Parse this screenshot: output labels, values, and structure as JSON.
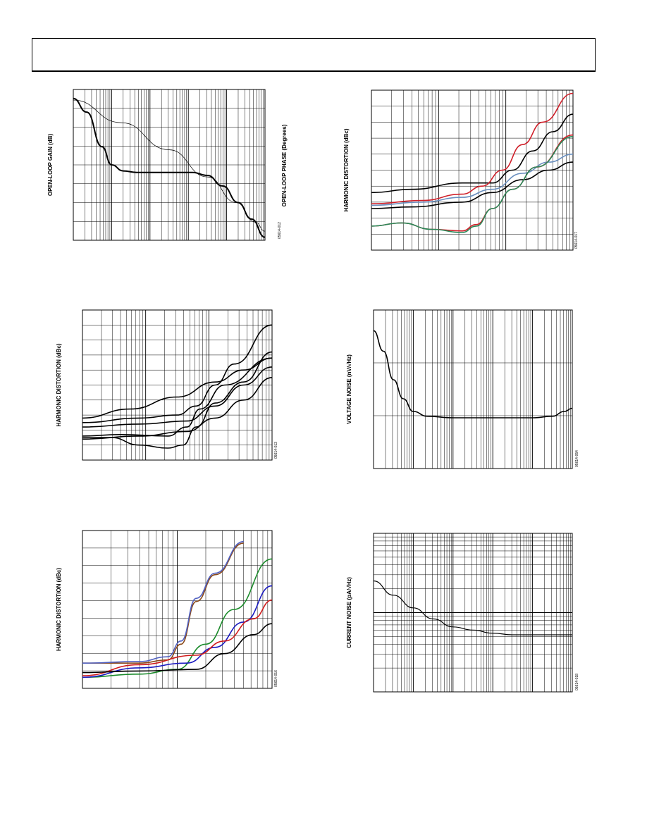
{
  "page": {
    "header_text": ""
  },
  "chart_data": [
    {
      "id": "c1",
      "type": "line",
      "ylabel": "OPEN-LOOP GAIN (dB)",
      "y2label": "OPEN-LOOP PHASE (Degrees)",
      "figure_code": "05614-012",
      "xscale": "log",
      "xdecades": 5,
      "hgrid": 8,
      "series": [
        {
          "color": "#000000",
          "width": 2.0,
          "points": [
            [
              0,
              0.94
            ],
            [
              0.07,
              0.85
            ],
            [
              0.15,
              0.62
            ],
            [
              0.2,
              0.5
            ],
            [
              0.26,
              0.46
            ],
            [
              0.33,
              0.45
            ],
            [
              0.5,
              0.45
            ],
            [
              0.62,
              0.45
            ],
            [
              0.7,
              0.43
            ],
            [
              0.78,
              0.36
            ],
            [
              0.86,
              0.25
            ],
            [
              0.93,
              0.14
            ],
            [
              1,
              0.02
            ]
          ]
        },
        {
          "color": "#000000",
          "width": 0.7,
          "points": [
            [
              0,
              0.93
            ],
            [
              0.25,
              0.78
            ],
            [
              0.5,
              0.6
            ],
            [
              0.7,
              0.42
            ],
            [
              0.85,
              0.25
            ],
            [
              0.95,
              0.12
            ],
            [
              1,
              0.06
            ]
          ]
        }
      ]
    },
    {
      "id": "c2",
      "type": "line",
      "ylabel": "HARMONIC DISTORTION (dBc)",
      "figure_code": "05614-017",
      "xscale": "log",
      "xdecades": 3,
      "hgrid": 10,
      "series": [
        {
          "color": "#000000",
          "width": 1.6,
          "points": [
            [
              0,
              0.36
            ],
            [
              0.2,
              0.38
            ],
            [
              0.45,
              0.42
            ],
            [
              0.6,
              0.42
            ],
            [
              0.7,
              0.5
            ],
            [
              0.8,
              0.62
            ],
            [
              0.9,
              0.74
            ],
            [
              1,
              0.85
            ]
          ]
        },
        {
          "color": "#d0202a",
          "width": 1.6,
          "points": [
            [
              0,
              0.29
            ],
            [
              0.25,
              0.31
            ],
            [
              0.45,
              0.35
            ],
            [
              0.55,
              0.4
            ],
            [
              0.65,
              0.5
            ],
            [
              0.75,
              0.66
            ],
            [
              0.85,
              0.8
            ],
            [
              1,
              0.98
            ]
          ]
        },
        {
          "color": "#6a8fbf",
          "width": 1.6,
          "points": [
            [
              0,
              0.28
            ],
            [
              0.25,
              0.3
            ],
            [
              0.45,
              0.33
            ],
            [
              0.6,
              0.38
            ],
            [
              0.75,
              0.48
            ],
            [
              0.88,
              0.55
            ],
            [
              1,
              0.6
            ]
          ]
        },
        {
          "color": "#000000",
          "width": 1.6,
          "points": [
            [
              0,
              0.26
            ],
            [
              0.2,
              0.27
            ],
            [
              0.45,
              0.3
            ],
            [
              0.6,
              0.36
            ],
            [
              0.75,
              0.44
            ],
            [
              0.88,
              0.5
            ],
            [
              1,
              0.55
            ]
          ]
        },
        {
          "color": "#d0202a",
          "width": 1.6,
          "points": [
            [
              0,
              0.15
            ],
            [
              0.15,
              0.17
            ],
            [
              0.3,
              0.13
            ],
            [
              0.45,
              0.12
            ],
            [
              0.52,
              0.16
            ],
            [
              0.6,
              0.26
            ],
            [
              0.7,
              0.38
            ],
            [
              0.82,
              0.52
            ],
            [
              1,
              0.72
            ]
          ]
        },
        {
          "color": "#2a8a5a",
          "width": 1.6,
          "points": [
            [
              0,
              0.15
            ],
            [
              0.15,
              0.17
            ],
            [
              0.3,
              0.13
            ],
            [
              0.45,
              0.11
            ],
            [
              0.52,
              0.15
            ],
            [
              0.6,
              0.26
            ],
            [
              0.7,
              0.38
            ],
            [
              0.82,
              0.52
            ],
            [
              1,
              0.71
            ]
          ]
        }
      ]
    },
    {
      "id": "c3",
      "type": "line",
      "ylabel": "HARMONIC DISTORTION (dBc)",
      "figure_code": "05614-013",
      "xscale": "log",
      "xdecades": 3,
      "hgrid": 10,
      "series": [
        {
          "color": "#000000",
          "width": 1.6,
          "points": [
            [
              0,
              0.28
            ],
            [
              0.25,
              0.34
            ],
            [
              0.5,
              0.42
            ],
            [
              0.7,
              0.52
            ],
            [
              0.85,
              0.6
            ],
            [
              1,
              0.68
            ]
          ]
        },
        {
          "color": "#000000",
          "width": 1.6,
          "points": [
            [
              0,
              0.25
            ],
            [
              0.3,
              0.28
            ],
            [
              0.5,
              0.3
            ],
            [
              0.6,
              0.36
            ],
            [
              0.7,
              0.5
            ],
            [
              0.8,
              0.64
            ],
            [
              1,
              0.9
            ]
          ]
        },
        {
          "color": "#000000",
          "width": 1.6,
          "points": [
            [
              0,
              0.22
            ],
            [
              0.3,
              0.24
            ],
            [
              0.55,
              0.26
            ],
            [
              0.7,
              0.36
            ],
            [
              0.85,
              0.5
            ],
            [
              1,
              0.62
            ]
          ]
        },
        {
          "color": "#000000",
          "width": 1.6,
          "points": [
            [
              0,
              0.16
            ],
            [
              0.2,
              0.17
            ],
            [
              0.45,
              0.16
            ],
            [
              0.55,
              0.22
            ],
            [
              0.62,
              0.34
            ],
            [
              0.75,
              0.5
            ],
            [
              1,
              0.68
            ]
          ]
        },
        {
          "color": "#000000",
          "width": 1.6,
          "points": [
            [
              0,
              0.14
            ],
            [
              0.3,
              0.16
            ],
            [
              0.55,
              0.19
            ],
            [
              0.7,
              0.28
            ],
            [
              0.85,
              0.4
            ],
            [
              1,
              0.55
            ]
          ]
        },
        {
          "color": "#000000",
          "width": 1.6,
          "points": [
            [
              0,
              0.15
            ],
            [
              0.15,
              0.15
            ],
            [
              0.3,
              0.1
            ],
            [
              0.45,
              0.08
            ],
            [
              0.53,
              0.1
            ],
            [
              0.6,
              0.22
            ],
            [
              0.7,
              0.38
            ],
            [
              0.85,
              0.52
            ],
            [
              1,
              0.72
            ]
          ]
        }
      ]
    },
    {
      "id": "c4",
      "type": "line",
      "ylabel": "VOLTAGE NOISE (nV/√Hz)",
      "figure_code": "05614-054",
      "xscale": "log",
      "xdecades": 5,
      "hgrid": 3,
      "series": [
        {
          "color": "#000000",
          "width": 1.6,
          "points": [
            [
              0,
              0.87
            ],
            [
              0.05,
              0.74
            ],
            [
              0.1,
              0.56
            ],
            [
              0.15,
              0.44
            ],
            [
              0.2,
              0.36
            ],
            [
              0.27,
              0.33
            ],
            [
              0.4,
              0.32
            ],
            [
              0.6,
              0.32
            ],
            [
              0.8,
              0.32
            ],
            [
              0.9,
              0.33
            ],
            [
              0.96,
              0.36
            ],
            [
              1,
              0.38
            ]
          ]
        }
      ]
    },
    {
      "id": "c5",
      "type": "line",
      "ylabel": "HARMONIC DISTORTION (dBc)",
      "figure_code": "05614-016",
      "xscale": "log",
      "xdecades": 2,
      "hgrid": 9,
      "series": [
        {
          "color": "#8a4a1a",
          "width": 1.6,
          "points": [
            [
              0,
              0.16
            ],
            [
              0.3,
              0.16
            ],
            [
              0.45,
              0.18
            ],
            [
              0.52,
              0.28
            ],
            [
              0.6,
              0.55
            ],
            [
              0.7,
              0.72
            ],
            [
              0.85,
              0.92
            ]
          ]
        },
        {
          "color": "#5060c0",
          "width": 1.6,
          "points": [
            [
              0,
              0.16
            ],
            [
              0.3,
              0.17
            ],
            [
              0.45,
              0.2
            ],
            [
              0.52,
              0.3
            ],
            [
              0.6,
              0.57
            ],
            [
              0.7,
              0.73
            ],
            [
              0.85,
              0.93
            ]
          ]
        },
        {
          "color": "#1a8a2a",
          "width": 1.6,
          "points": [
            [
              0,
              0.07
            ],
            [
              0.3,
              0.09
            ],
            [
              0.5,
              0.12
            ],
            [
              0.65,
              0.28
            ],
            [
              0.8,
              0.5
            ],
            [
              1,
              0.82
            ]
          ]
        },
        {
          "color": "#1a1ac0",
          "width": 1.6,
          "points": [
            [
              0,
              0.07
            ],
            [
              0.3,
              0.13
            ],
            [
              0.55,
              0.16
            ],
            [
              0.7,
              0.26
            ],
            [
              0.85,
              0.42
            ],
            [
              1,
              0.65
            ]
          ]
        },
        {
          "color": "#d01a1a",
          "width": 1.6,
          "points": [
            [
              0,
              0.08
            ],
            [
              0.3,
              0.15
            ],
            [
              0.6,
              0.21
            ],
            [
              0.75,
              0.3
            ],
            [
              0.9,
              0.44
            ],
            [
              1,
              0.56
            ]
          ]
        },
        {
          "color": "#000000",
          "width": 1.6,
          "points": [
            [
              0,
              0.1
            ],
            [
              0.3,
              0.11
            ],
            [
              0.6,
              0.12
            ],
            [
              0.75,
              0.22
            ],
            [
              0.9,
              0.34
            ],
            [
              1,
              0.41
            ]
          ]
        }
      ]
    },
    {
      "id": "c6",
      "type": "line",
      "ylabel": "CURRENT NOISE (pA/√Hz)",
      "figure_code": "05614-018",
      "xscale": "log",
      "xdecades": 5,
      "ylog": true,
      "ydecades": 2,
      "series": [
        {
          "color": "#000000",
          "width": 1.2,
          "points": [
            [
              0,
              0.7
            ],
            [
              0.1,
              0.61
            ],
            [
              0.2,
              0.53
            ],
            [
              0.3,
              0.46
            ],
            [
              0.4,
              0.41
            ],
            [
              0.5,
              0.39
            ],
            [
              0.6,
              0.37
            ],
            [
              0.7,
              0.36
            ],
            [
              0.8,
              0.36
            ],
            [
              0.9,
              0.36
            ],
            [
              1,
              0.36
            ]
          ]
        }
      ]
    }
  ]
}
